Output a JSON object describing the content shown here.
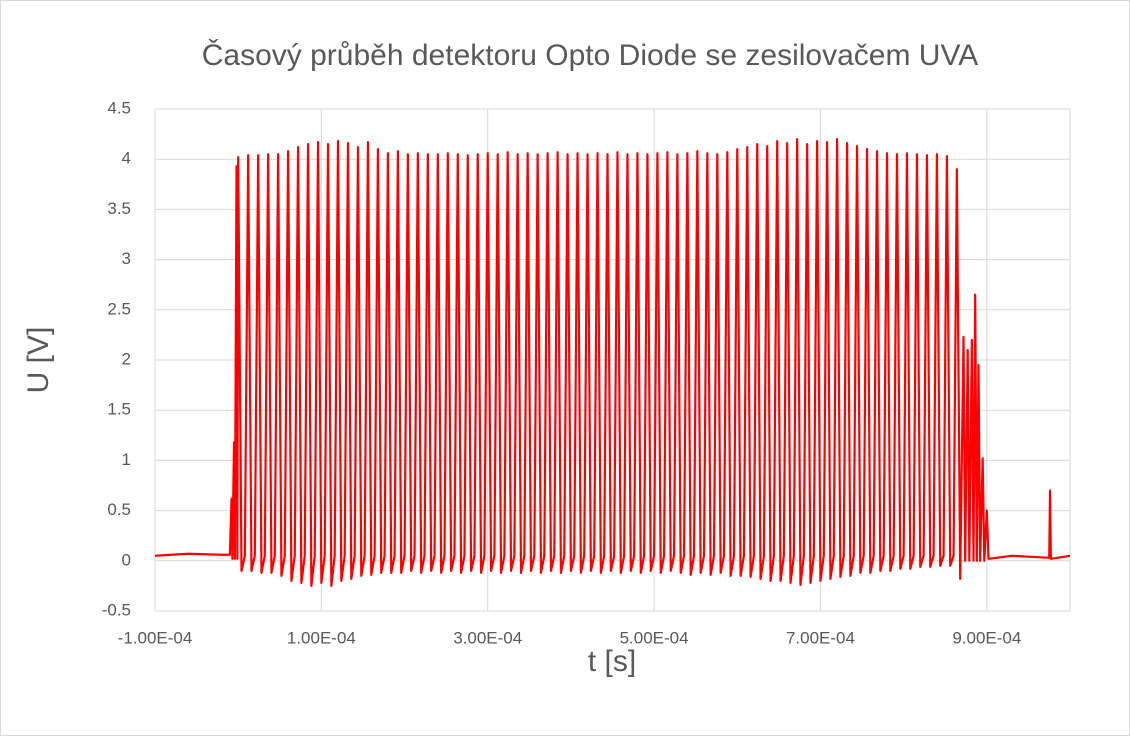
{
  "chart_data": {
    "type": "line",
    "title": "Časový průběh detektoru Opto Diode se zesilovačem UVA",
    "x_label": "t [s]",
    "y_label": "U [V]",
    "xlim": [
      -0.0001,
      0.001
    ],
    "xticks": [
      {
        "value": -0.0001,
        "label": "-1.00E-04"
      },
      {
        "value": 0.0001,
        "label": "1.00E-04"
      },
      {
        "value": 0.0003,
        "label": "3.00E-04"
      },
      {
        "value": 0.0005,
        "label": "5.00E-04"
      },
      {
        "value": 0.0007,
        "label": "7.00E-04"
      },
      {
        "value": 0.0009,
        "label": "9.00E-04"
      }
    ],
    "ylim": [
      -0.5,
      4.5
    ],
    "yticks": [
      -0.5,
      0,
      0.5,
      1,
      1.5,
      2,
      2.5,
      3,
      3.5,
      4,
      4.5
    ],
    "grid": true,
    "x": [
      -0.0001,
      -6e-05,
      -2e-05,
      -1e-05,
      -8e-06,
      -7e-06,
      -5e-06,
      -4e-06,
      -2e-06,
      -1e-06,
      0,
      4e-06,
      8e-06,
      1.2e-05,
      1.6e-05,
      2e-05,
      2.4e-05,
      2.8e-05,
      3.2e-05,
      3.6e-05,
      4e-05,
      4.4e-05,
      4.8e-05,
      5.2e-05,
      5.6e-05,
      6e-05,
      6.4e-05,
      6.8e-05,
      7.2e-05,
      7.6e-05,
      8e-05,
      8.4e-05,
      8.8e-05,
      9.2e-05,
      9.6e-05,
      0.0001,
      0.000104,
      0.000108,
      0.000112,
      0.000116,
      0.00012,
      0.000124,
      0.000128,
      0.000132,
      0.000136,
      0.00014,
      0.000144,
      0.000148,
      0.000152,
      0.000156,
      0.00016,
      0.000164,
      0.000168,
      0.000172,
      0.000176,
      0.00018,
      0.000184,
      0.000188,
      0.000192,
      0.000196,
      0.0002,
      0.000204,
      0.000208,
      0.000212,
      0.000216,
      0.00022,
      0.000224,
      0.000228,
      0.000232,
      0.000236,
      0.00024,
      0.000244,
      0.000248,
      0.000252,
      0.000256,
      0.00026,
      0.000264,
      0.000268,
      0.000272,
      0.000276,
      0.00028,
      0.000284,
      0.000288,
      0.000292,
      0.000296,
      0.0003,
      0.000304,
      0.000308,
      0.000312,
      0.000316,
      0.00032,
      0.000324,
      0.000328,
      0.000332,
      0.000336,
      0.00034,
      0.000344,
      0.000348,
      0.000352,
      0.000356,
      0.00036,
      0.000364,
      0.000368,
      0.000372,
      0.000376,
      0.00038,
      0.000384,
      0.000388,
      0.000392,
      0.000396,
      0.0004,
      0.000404,
      0.000408,
      0.000412,
      0.000416,
      0.00042,
      0.000424,
      0.000428,
      0.000432,
      0.000436,
      0.00044,
      0.000444,
      0.000448,
      0.000452,
      0.000456,
      0.00046,
      0.000464,
      0.000468,
      0.000472,
      0.000476,
      0.00048,
      0.000484,
      0.000488,
      0.000492,
      0.000496,
      0.0005,
      0.000504,
      0.000508,
      0.000512,
      0.000516,
      0.00052,
      0.000524,
      0.000528,
      0.000532,
      0.000536,
      0.00054,
      0.000544,
      0.000548,
      0.000552,
      0.000556,
      0.00056,
      0.000564,
      0.000568,
      0.000572,
      0.000576,
      0.00058,
      0.000584,
      0.000588,
      0.000592,
      0.000596,
      0.0006,
      0.000604,
      0.000608,
      0.000612,
      0.000616,
      0.00062,
      0.000624,
      0.000628,
      0.000632,
      0.000636,
      0.00064,
      0.000644,
      0.000648,
      0.000652,
      0.000656,
      0.00066,
      0.000664,
      0.000668,
      0.000672,
      0.000676,
      0.00068,
      0.000684,
      0.000688,
      0.000692,
      0.000696,
      0.0007,
      0.000704,
      0.000708,
      0.000712,
      0.000716,
      0.00072,
      0.000724,
      0.000728,
      0.000732,
      0.000736,
      0.00074,
      0.000744,
      0.000748,
      0.000752,
      0.000756,
      0.00076,
      0.000764,
      0.000768,
      0.000772,
      0.000776,
      0.00078,
      0.000784,
      0.000788,
      0.000792,
      0.000796,
      0.0008,
      0.000804,
      0.000808,
      0.000812,
      0.000816,
      0.00082,
      0.000824,
      0.000828,
      0.000832,
      0.000836,
      0.00084,
      0.000844,
      0.000848,
      0.000852,
      0.000856,
      0.00086,
      0.000864,
      0.000868,
      0.000872,
      0.000874,
      0.000877,
      0.000879,
      0.000882,
      0.000884,
      0.000886,
      0.000888,
      0.00089,
      0.000892,
      0.000895,
      0.000897,
      0.0009,
      0.000902,
      0.00093,
      0.000975,
      0.000976,
      0.000977,
      0.001
    ],
    "series": [
      {
        "name": "U",
        "color": "#ff0000",
        "values": [
          0.05,
          0.07,
          0.06,
          0.06,
          0.62,
          0.02,
          1.18,
          0.02,
          3.93,
          0.02,
          4.02,
          -0.1,
          0.05,
          4.04,
          -0.1,
          0.05,
          4.04,
          -0.12,
          0.05,
          4.05,
          -0.12,
          0.05,
          4.05,
          -0.15,
          0.05,
          4.08,
          -0.2,
          0.05,
          4.12,
          -0.22,
          0.05,
          4.15,
          -0.25,
          0.05,
          4.17,
          -0.22,
          0.05,
          4.15,
          -0.25,
          0.05,
          4.18,
          -0.2,
          0.05,
          4.16,
          -0.18,
          0.05,
          4.12,
          -0.15,
          0.05,
          4.17,
          -0.14,
          0.05,
          4.1,
          -0.12,
          0.05,
          4.06,
          -0.12,
          0.05,
          4.08,
          -0.12,
          0.05,
          4.05,
          -0.1,
          0.05,
          4.06,
          -0.12,
          0.05,
          4.05,
          -0.1,
          0.05,
          4.05,
          -0.12,
          0.05,
          4.06,
          -0.1,
          0.05,
          4.05,
          -0.12,
          0.05,
          4.04,
          -0.1,
          0.05,
          4.05,
          -0.12,
          0.05,
          4.06,
          -0.1,
          0.05,
          4.05,
          -0.12,
          0.05,
          4.07,
          -0.1,
          0.05,
          4.05,
          -0.12,
          0.05,
          4.06,
          -0.1,
          0.05,
          4.05,
          -0.12,
          0.05,
          4.06,
          -0.1,
          0.05,
          4.07,
          -0.12,
          0.05,
          4.05,
          -0.1,
          0.05,
          4.06,
          -0.12,
          0.05,
          4.05,
          -0.1,
          0.05,
          4.06,
          -0.12,
          0.05,
          4.05,
          -0.1,
          0.05,
          4.07,
          -0.12,
          0.05,
          4.05,
          -0.1,
          0.05,
          4.06,
          -0.12,
          0.05,
          4.05,
          -0.1,
          0.05,
          4.06,
          -0.12,
          0.05,
          4.07,
          -0.1,
          0.05,
          4.05,
          -0.12,
          0.05,
          4.06,
          -0.14,
          0.05,
          4.08,
          -0.12,
          0.05,
          4.06,
          -0.14,
          0.05,
          4.05,
          -0.12,
          0.05,
          4.07,
          -0.15,
          0.05,
          4.1,
          -0.15,
          0.05,
          4.12,
          -0.16,
          0.05,
          4.15,
          -0.18,
          0.05,
          4.13,
          -0.2,
          0.05,
          4.18,
          -0.2,
          0.05,
          4.16,
          -0.22,
          0.05,
          4.2,
          -0.24,
          0.05,
          4.15,
          -0.22,
          0.05,
          4.18,
          -0.2,
          0.05,
          4.17,
          -0.18,
          0.05,
          4.2,
          -0.16,
          0.05,
          4.16,
          -0.15,
          0.05,
          4.13,
          -0.12,
          0.05,
          4.1,
          -0.12,
          0.05,
          4.08,
          -0.1,
          0.05,
          4.06,
          -0.1,
          0.05,
          4.05,
          -0.08,
          0.05,
          4.06,
          -0.08,
          0.05,
          4.05,
          -0.06,
          0.05,
          4.04,
          -0.06,
          0.05,
          4.05,
          -0.05,
          0.05,
          4.03,
          -0.05,
          0.05,
          3.9,
          -0.18,
          2.23,
          0.0,
          2.1,
          0.0,
          2.2,
          0.0,
          2.65,
          0.0,
          1.95,
          0.0,
          1.02,
          0.0,
          0.5,
          0.02,
          0.05,
          0.03,
          0.7,
          0.02,
          0.05
        ]
      }
    ]
  }
}
